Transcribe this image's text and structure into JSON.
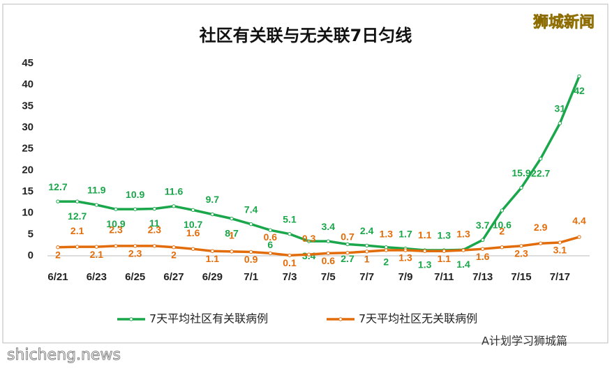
{
  "chart_data": {
    "type": "line",
    "title": "社区有关联与无关联7日匀线",
    "watermark": "狮城新闻",
    "footer_left": "shicheng.news",
    "footer_right": "A计划学习狮城篇",
    "categories": [
      "6/21",
      null,
      "6/23",
      null,
      "6/25",
      null,
      "6/27",
      null,
      "6/29",
      null,
      "7/1",
      null,
      "7/3",
      null,
      "7/5",
      null,
      "7/7",
      null,
      "7/9",
      null,
      "7/11",
      null,
      "7/13",
      null,
      "7/15",
      null,
      "7/17",
      null
    ],
    "series": [
      {
        "name": "7天平均社区有关联病例",
        "color": "#1aa64a",
        "values": [
          12.7,
          12.7,
          11.9,
          10.9,
          10.9,
          11,
          11.6,
          10.7,
          9.7,
          8.7,
          7.4,
          6,
          5.1,
          3.4,
          3.4,
          2.7,
          2.4,
          2,
          1.7,
          1.3,
          1.3,
          1.4,
          3.7,
          10.6,
          15.9,
          22.7,
          31,
          42
        ]
      },
      {
        "name": "7天平均社区无关联病例",
        "color": "#e36c0a",
        "values": [
          2,
          2.1,
          2.1,
          2.3,
          2.3,
          2.3,
          2,
          1.6,
          1.1,
          1,
          0.9,
          0.6,
          0.1,
          0.3,
          0.6,
          0.7,
          1,
          1.3,
          1.3,
          1.1,
          1.1,
          1.3,
          1.6,
          2,
          2.3,
          2.9,
          3.1,
          4.4
        ]
      }
    ],
    "ylim": [
      0,
      45
    ],
    "yticks": [
      0,
      5,
      10,
      15,
      20,
      25,
      30,
      35,
      40,
      45
    ],
    "grid": false
  }
}
